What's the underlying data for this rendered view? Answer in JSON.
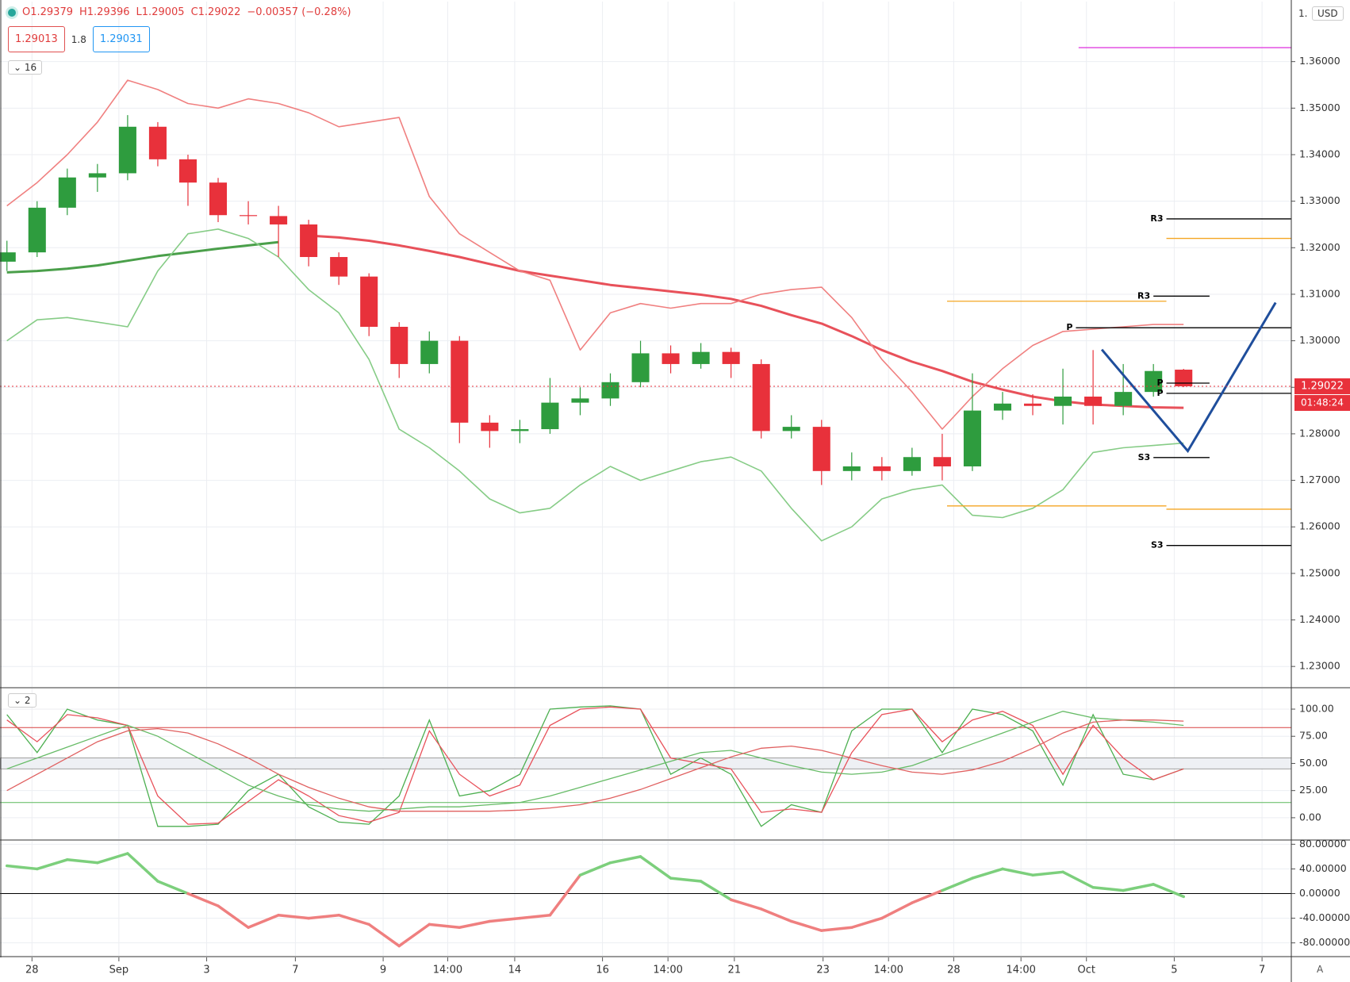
{
  "header": {
    "open": "O1.29379",
    "high": "H1.29396",
    "low": "L1.29005",
    "close": "C1.29022",
    "change": "−0.00357 (−0.28%)",
    "sell_price": "1.29013",
    "spread": "1.8",
    "buy_price": "1.29031",
    "indicators_count": "16",
    "oscillators_count": "2",
    "currency": "USD",
    "top_label": "1.",
    "auto_button": "A"
  },
  "chart_data": [
    {
      "type": "candlestick",
      "up_color": "#2e9c3e",
      "down_color": "#e8313b",
      "open": [
        1.317,
        1.319,
        1.3286,
        1.3351,
        1.336,
        1.346,
        1.339,
        1.334,
        1.327,
        1.3268,
        1.325,
        1.318,
        1.3138,
        1.303,
        1.295,
        1.3,
        1.2824,
        1.2806,
        1.281,
        1.2867,
        1.2876,
        1.2911,
        1.2973,
        1.295,
        1.2976,
        1.295,
        1.2806,
        1.2815,
        1.272,
        1.273,
        1.272,
        1.275,
        1.273,
        1.285,
        1.2865,
        1.286,
        1.288,
        1.286,
        1.289,
        1.29379
      ],
      "high": [
        1.3215,
        1.33,
        1.337,
        1.338,
        1.3485,
        1.347,
        1.34,
        1.335,
        1.33,
        1.329,
        1.326,
        1.319,
        1.3145,
        1.304,
        1.302,
        1.301,
        1.284,
        1.283,
        1.292,
        1.29,
        1.293,
        1.3,
        1.299,
        1.2995,
        1.2985,
        1.296,
        1.284,
        1.283,
        1.276,
        1.275,
        1.277,
        1.28,
        1.293,
        1.289,
        1.2885,
        1.294,
        1.298,
        1.295,
        1.295,
        1.29396
      ],
      "low": [
        1.315,
        1.318,
        1.327,
        1.332,
        1.3345,
        1.3375,
        1.329,
        1.3255,
        1.325,
        1.318,
        1.316,
        1.312,
        1.301,
        1.292,
        1.293,
        1.278,
        1.277,
        1.278,
        1.28,
        1.284,
        1.286,
        1.29,
        1.293,
        1.294,
        1.292,
        1.279,
        1.279,
        1.269,
        1.27,
        1.27,
        1.271,
        1.27,
        1.272,
        1.283,
        1.284,
        1.282,
        1.282,
        1.284,
        1.288,
        1.29005
      ],
      "close": [
        1.319,
        1.3286,
        1.3351,
        1.336,
        1.346,
        1.339,
        1.334,
        1.327,
        1.3268,
        1.325,
        1.318,
        1.3138,
        1.303,
        1.295,
        1.3,
        1.2824,
        1.2806,
        1.281,
        1.2867,
        1.2876,
        1.2911,
        1.2973,
        1.295,
        1.2976,
        1.295,
        1.2806,
        1.2815,
        1.272,
        1.273,
        1.272,
        1.275,
        1.273,
        1.285,
        1.2865,
        1.286,
        1.288,
        1.286,
        1.289,
        1.2935,
        1.29022
      ],
      "series": [
        {
          "color": "#e8515a",
          "width": 3,
          "values": [
            null,
            null,
            null,
            null,
            null,
            null,
            null,
            null,
            null,
            null,
            1.3226,
            1.3222,
            1.3215,
            1.3205,
            1.3193,
            1.318,
            1.3165,
            1.315,
            1.314,
            1.313,
            1.312,
            1.3113,
            1.3106,
            1.3099,
            1.309,
            1.3075,
            1.3055,
            1.3037,
            1.301,
            1.298,
            1.2955,
            1.2935,
            1.2912,
            1.2895,
            1.288,
            1.287,
            1.2863,
            1.286,
            1.2857,
            1.2856
          ]
        },
        {
          "color": "#4a9f4a",
          "width": 3,
          "values": [
            1.3147,
            1.315,
            1.3155,
            1.3162,
            1.3172,
            1.3182,
            1.319,
            1.3198,
            1.3205,
            1.3212,
            null,
            null,
            null,
            null,
            null,
            null,
            null,
            null,
            null,
            null,
            null,
            null,
            null,
            null,
            null,
            null,
            null,
            null,
            null,
            null,
            null,
            null,
            null,
            null,
            null,
            null,
            null,
            null,
            null,
            null
          ]
        },
        {
          "color": "#f08080",
          "width": 1.6,
          "values": [
            1.329,
            1.334,
            1.34,
            1.347,
            1.356,
            1.354,
            1.351,
            1.35,
            1.352,
            1.351,
            1.349,
            1.346,
            1.347,
            1.348,
            1.331,
            1.323,
            1.319,
            1.315,
            1.313,
            1.298,
            1.306,
            1.308,
            1.307,
            1.308,
            1.308,
            1.31,
            1.311,
            1.3115,
            1.305,
            1.296,
            1.289,
            1.281,
            1.288,
            1.294,
            1.299,
            1.302,
            1.3025,
            1.303,
            1.3035,
            1.3035
          ]
        },
        {
          "color": "#86cc86",
          "width": 1.6,
          "values": [
            1.3,
            1.3045,
            1.305,
            1.304,
            1.303,
            1.315,
            1.323,
            1.324,
            1.322,
            1.318,
            1.311,
            1.306,
            1.296,
            1.281,
            1.277,
            1.272,
            1.266,
            1.263,
            1.264,
            1.269,
            1.273,
            1.27,
            1.272,
            1.274,
            1.275,
            1.272,
            1.264,
            1.257,
            1.26,
            1.266,
            1.268,
            1.269,
            1.2625,
            1.262,
            1.264,
            1.268,
            1.276,
            1.277,
            1.2775,
            1.278
          ]
        }
      ],
      "levels": [
        {
          "label": "R3",
          "value": 1.3262,
          "from": 38.43,
          "to": 42.57,
          "color": "#000000"
        },
        {
          "label": "R3",
          "value": 1.3096,
          "from": 38.0,
          "to": 39.86,
          "color": "#000000"
        },
        {
          "label": "P",
          "value": 1.3028,
          "from": 35.43,
          "to": 42.57,
          "color": "#000000"
        },
        {
          "label": "P",
          "value": 1.2909,
          "from": 38.43,
          "to": 39.86,
          "color": "#000000"
        },
        {
          "label": "P",
          "value": 1.2887,
          "from": 38.43,
          "to": 42.57,
          "color": "#000000"
        },
        {
          "label": "S3",
          "value": 1.2749,
          "from": 38.0,
          "to": 39.86,
          "color": "#000000"
        },
        {
          "label": "S3",
          "value": 1.256,
          "from": 38.43,
          "to": 42.57,
          "color": "#000000"
        },
        {
          "value": 1.322,
          "from": 38.43,
          "to": 42.57,
          "color": "#f5a623"
        },
        {
          "value": 1.3085,
          "from": 31.16,
          "to": 38.43,
          "color": "#f5a623"
        },
        {
          "value": 1.2645,
          "from": 31.16,
          "to": 38.43,
          "color": "#f5a623"
        },
        {
          "value": 1.2638,
          "from": 38.43,
          "to": 42.57,
          "color": "#f5a623"
        },
        {
          "value": 1.363,
          "from": 35.52,
          "to": 42.57,
          "color": "#e040e0"
        }
      ],
      "drawing": {
        "color": "#1f4e9c",
        "x": [
          36.29,
          39.14,
          42.05
        ],
        "y": [
          1.2981,
          1.2763,
          1.3082
        ]
      },
      "last_price_label": "1.29022",
      "countdown": "01:48:24",
      "ylim": [
        1.2256,
        1.3729
      ],
      "yticks": [
        {
          "value": 1.23,
          "label": "1.23000"
        },
        {
          "value": 1.24,
          "label": "1.24000"
        },
        {
          "value": 1.25,
          "label": "1.25000"
        },
        {
          "value": 1.26,
          "label": "1.26000"
        },
        {
          "value": 1.27,
          "label": "1.27000"
        },
        {
          "value": 1.28,
          "label": "1.28000"
        },
        {
          "value": 1.29,
          "label": "1.29000"
        },
        {
          "value": 1.3,
          "label": "1.30000"
        },
        {
          "value": 1.31,
          "label": "1.31000"
        },
        {
          "value": 1.32,
          "label": "1.32000"
        },
        {
          "value": 1.33,
          "label": "1.33000"
        },
        {
          "value": 1.34,
          "label": "1.34000"
        },
        {
          "value": 1.35,
          "label": "1.35000"
        },
        {
          "value": 1.36,
          "label": "1.36000"
        }
      ]
    },
    {
      "type": "line",
      "series": [
        {
          "color": "#4caf50",
          "values": [
            95,
            60,
            100,
            90,
            85,
            -8,
            -8,
            -6,
            25,
            40,
            10,
            -4,
            -6,
            20,
            90,
            20,
            25,
            40,
            100,
            102,
            103,
            100,
            40,
            55,
            40,
            -8,
            12,
            5,
            80,
            100,
            100,
            60,
            100,
            95,
            80,
            30,
            95,
            40,
            35,
            45
          ]
        },
        {
          "color": "#e8515a",
          "values": [
            90,
            70,
            95,
            92,
            85,
            20,
            -6,
            -5,
            15,
            35,
            20,
            2,
            -4,
            5,
            80,
            40,
            20,
            30,
            85,
            100,
            102,
            100,
            55,
            50,
            45,
            5,
            8,
            5,
            60,
            95,
            100,
            70,
            90,
            98,
            85,
            40,
            85,
            55,
            35,
            45
          ]
        },
        {
          "color": "#66bb66",
          "values": [
            45,
            55,
            65,
            75,
            85,
            75,
            60,
            45,
            30,
            20,
            12,
            8,
            6,
            8,
            10,
            10,
            12,
            14,
            20,
            28,
            36,
            44,
            52,
            60,
            62,
            55,
            48,
            42,
            40,
            42,
            48,
            58,
            68,
            78,
            88,
            98,
            92,
            90,
            88,
            85
          ]
        },
        {
          "color": "#e06060",
          "values": [
            25,
            40,
            55,
            70,
            80,
            82,
            78,
            68,
            55,
            40,
            28,
            18,
            10,
            6,
            6,
            6,
            6,
            7,
            9,
            12,
            18,
            26,
            36,
            46,
            56,
            64,
            66,
            62,
            55,
            48,
            42,
            40,
            44,
            52,
            64,
            78,
            88,
            90,
            90,
            89
          ]
        }
      ],
      "hlines": [
        {
          "value": 83,
          "color": "#d84040"
        },
        {
          "value": 14,
          "color": "#5cb85c"
        }
      ],
      "band": [
        45,
        55
      ],
      "ylim": [
        -19.8,
        119
      ],
      "yticks": [
        {
          "value": 0,
          "label": "0.00"
        },
        {
          "value": 25,
          "label": "25.00"
        },
        {
          "value": 50,
          "label": "50.00"
        },
        {
          "value": 75,
          "label": "75.00"
        },
        {
          "value": 100,
          "label": "100.00"
        }
      ]
    },
    {
      "type": "line",
      "positive_color": "#7ccf7c",
      "negative_color": "#ef7f7f",
      "values": [
        45,
        40,
        55,
        50,
        65,
        20,
        0,
        -20,
        -55,
        -35,
        -40,
        -35,
        -50,
        -85,
        -50,
        -55,
        -45,
        -40,
        -35,
        30,
        50,
        60,
        25,
        20,
        -10,
        -25,
        -45,
        -60,
        -55,
        -40,
        -15,
        5,
        25,
        40,
        30,
        35,
        10,
        5,
        15,
        -5
      ],
      "hlines": [
        {
          "value": 0,
          "color": "#000000"
        }
      ],
      "ylim": [
        -101,
        85.6
      ],
      "yticks": [
        {
          "value": -80,
          "label": "-80.00000"
        },
        {
          "value": -40,
          "label": "-40.00000"
        },
        {
          "value": 0,
          "label": "0.00000"
        },
        {
          "value": 40,
          "label": "40.00000"
        },
        {
          "value": 80,
          "label": "80.00000"
        }
      ],
      "xlim": [
        -0.23,
        42.57
      ],
      "xticks": [
        {
          "value": 0.83,
          "label": "28"
        },
        {
          "value": 3.71,
          "label": "Sep"
        },
        {
          "value": 6.62,
          "label": "3"
        },
        {
          "value": 9.56,
          "label": "7"
        },
        {
          "value": 12.47,
          "label": "9"
        },
        {
          "value": 14.61,
          "label": "14:00"
        },
        {
          "value": 16.83,
          "label": "14"
        },
        {
          "value": 19.74,
          "label": "16"
        },
        {
          "value": 21.91,
          "label": "14:00"
        },
        {
          "value": 24.11,
          "label": "21"
        },
        {
          "value": 27.05,
          "label": "23"
        },
        {
          "value": 29.22,
          "label": "14:00"
        },
        {
          "value": 31.38,
          "label": "28"
        },
        {
          "value": 33.61,
          "label": "14:00"
        },
        {
          "value": 35.78,
          "label": "Oct"
        },
        {
          "value": 38.69,
          "label": "5"
        },
        {
          "value": 41.6,
          "label": "7"
        }
      ]
    }
  ]
}
